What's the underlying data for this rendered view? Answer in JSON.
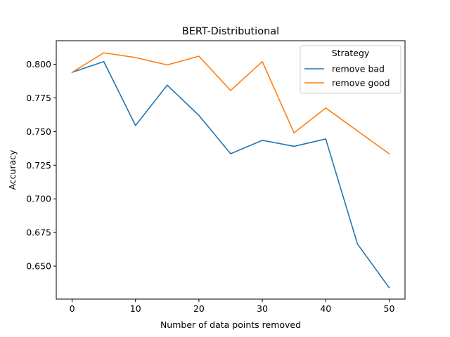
{
  "chart_data": {
    "type": "line",
    "title": "BERT-Distributional",
    "xlabel": "Number of data points removed",
    "ylabel": "Accuracy",
    "xlim": [
      -2.5,
      52.5
    ],
    "ylim": [
      0.6255,
      0.8175
    ],
    "xticks": [
      0,
      10,
      20,
      30,
      40,
      50
    ],
    "yticks": [
      0.65,
      0.675,
      0.7,
      0.725,
      0.75,
      0.775,
      0.8
    ],
    "ytick_labels": [
      "0.650",
      "0.675",
      "0.700",
      "0.725",
      "0.750",
      "0.775",
      "0.800"
    ],
    "grid": false,
    "legend": {
      "title": "Strategy",
      "position": "top-right"
    },
    "x": [
      0,
      5,
      10,
      15,
      20,
      25,
      30,
      35,
      40,
      45,
      50
    ],
    "series": [
      {
        "name": "remove bad",
        "color": "#1f77b4",
        "values": [
          0.794,
          0.802,
          0.7545,
          0.7845,
          0.762,
          0.7335,
          0.7435,
          0.739,
          0.7445,
          0.6665,
          0.634
        ]
      },
      {
        "name": "remove good",
        "color": "#ff7f0e",
        "values": [
          0.794,
          0.8085,
          0.805,
          0.7995,
          0.806,
          0.7805,
          0.802,
          0.749,
          0.7675,
          0.7505,
          0.7335
        ]
      }
    ]
  }
}
